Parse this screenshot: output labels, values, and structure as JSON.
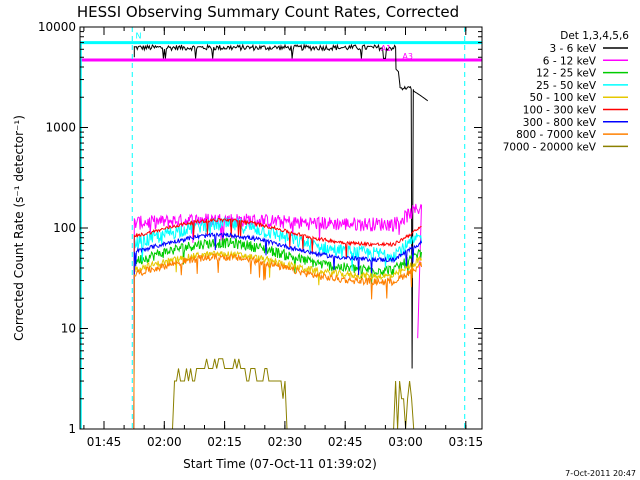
{
  "chart_data": {
    "type": "line",
    "title": "HESSI Observing Summary Count Rates, Corrected",
    "xlabel": "Start Time (07-Oct-11 01:39:02)",
    "ylabel": "Corrected Count Rate (s⁻¹ detector⁻¹)",
    "x_unit": "minutes since 01:39:02",
    "xlim": [
      0,
      100
    ],
    "ylim": [
      1,
      10000
    ],
    "y_scale": "log",
    "x_ticks": [
      {
        "label": "01:45",
        "value": 5.97
      },
      {
        "label": "02:00",
        "value": 20.97
      },
      {
        "label": "02:15",
        "value": 35.97
      },
      {
        "label": "02:30",
        "value": 50.97
      },
      {
        "label": "02:45",
        "value": 65.97
      },
      {
        "label": "03:00",
        "value": 80.97
      },
      {
        "label": "03:15",
        "value": 95.97
      }
    ],
    "y_ticks": [
      {
        "label": "1",
        "value": 1
      },
      {
        "label": "10",
        "value": 10
      },
      {
        "label": "100",
        "value": 100
      },
      {
        "label": "1000",
        "value": 1000
      },
      {
        "label": "10000",
        "value": 10000
      }
    ],
    "legend_title": "Det 1,3,4,5,6",
    "legend_position": "outside right",
    "series": [
      {
        "name": "3 - 6 keV",
        "color": "#000000",
        "base": 6500
      },
      {
        "name": "6 - 12 keV",
        "color": "#ff00ff",
        "base": 110
      },
      {
        "name": "12 - 25 keV",
        "color": "#00cc00",
        "base": 38
      },
      {
        "name": "25 - 50 keV",
        "color": "#00ffff",
        "base": 55
      },
      {
        "name": "50 - 100 keV",
        "color": "#e6c800",
        "base": 33
      },
      {
        "name": "100 - 300 keV",
        "color": "#ff0000",
        "base": 68
      },
      {
        "name": "300 - 800 keV",
        "color": "#0000ff",
        "base": 48
      },
      {
        "name": "800 - 7000 keV",
        "color": "#ff8000",
        "base": 29
      },
      {
        "name": "7000 - 20000 keV",
        "color": "#8b8000",
        "base": 1
      }
    ],
    "attenuator_level_cyan": 7000,
    "attenuator_level_magenta": 4700,
    "vertical_markers_x": [
      13.0,
      95.7
    ],
    "marker_labels": [
      {
        "text": "N",
        "color": "#00ffff",
        "x": 13.8,
        "y": 7700
      },
      {
        "text": "A1",
        "color": "#ff00ff",
        "x": 74.8,
        "y": 5800
      },
      {
        "text": "A3",
        "color": "#ff00ff",
        "x": 80.2,
        "y": 4800
      }
    ],
    "footer": "7-Oct-2011 20:47"
  }
}
